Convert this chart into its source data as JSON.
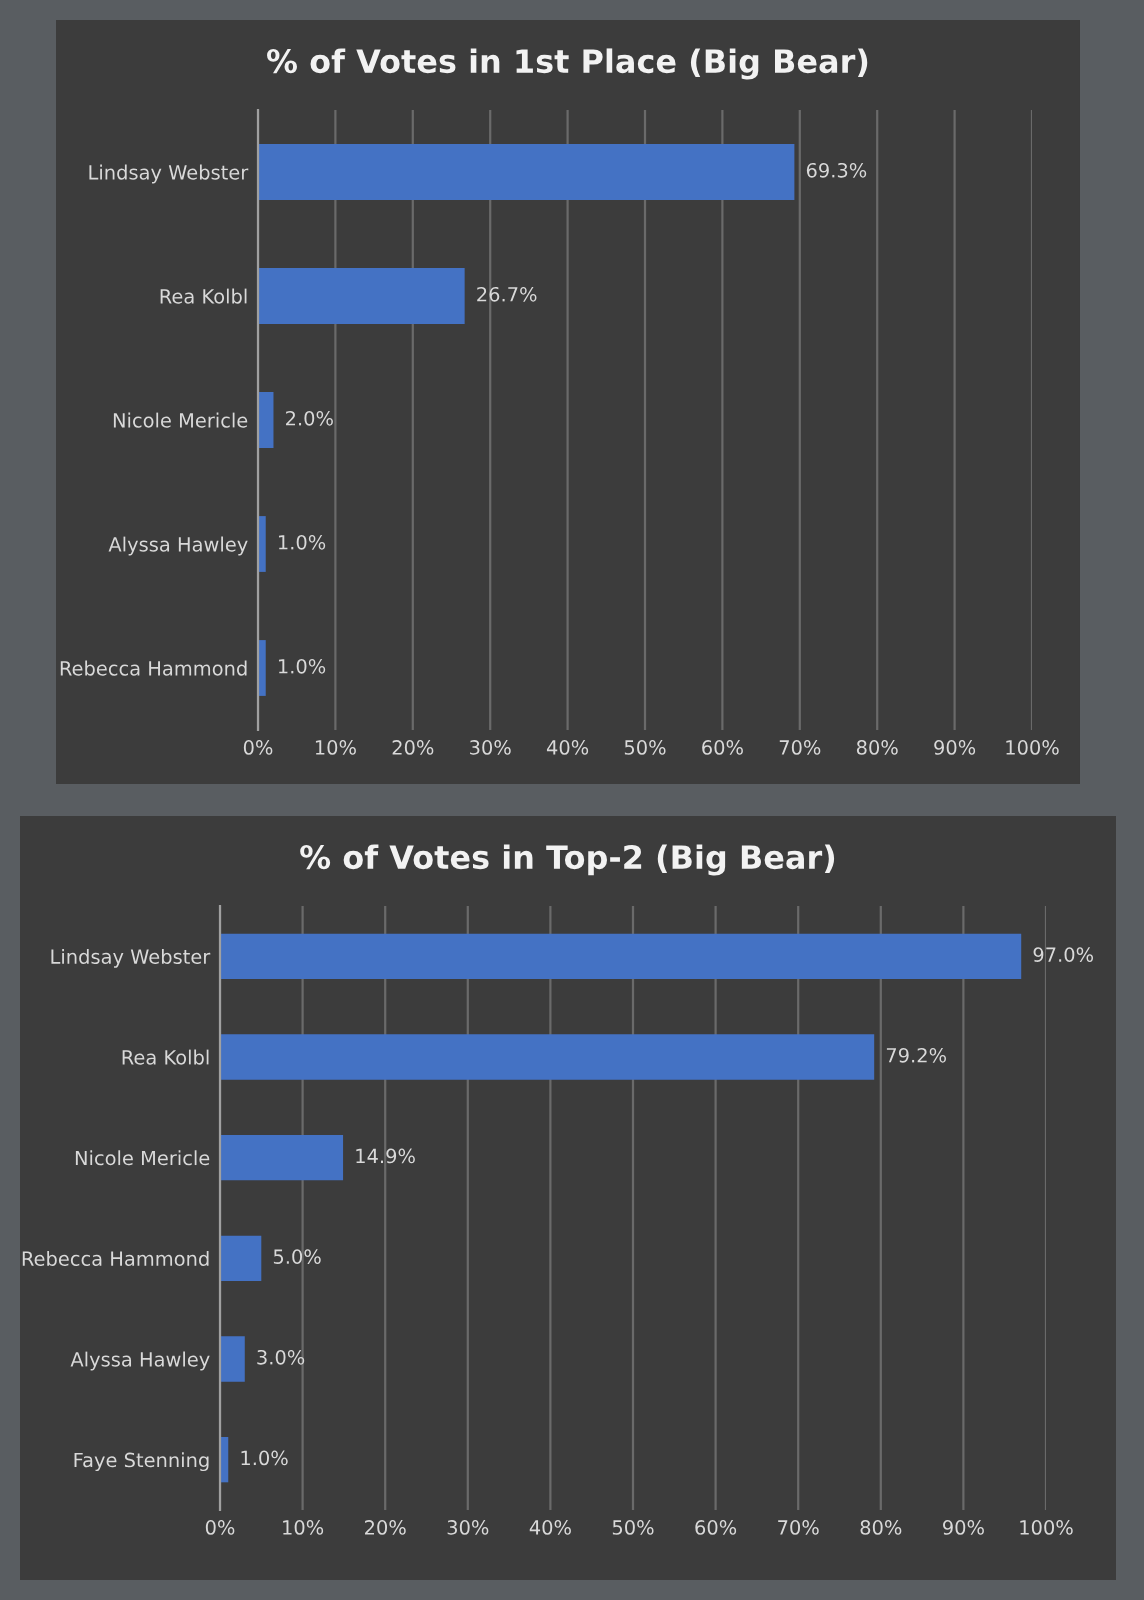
{
  "chart_data": [
    {
      "type": "bar",
      "orientation": "horizontal",
      "title": "% of Votes in 1st Place (Big Bear)",
      "categories": [
        "Lindsay Webster",
        "Rea Kolbl",
        "Nicole Mericle",
        "Alyssa Hawley",
        "Rebecca Hammond"
      ],
      "values": [
        69.3,
        26.7,
        2.0,
        1.0,
        1.0
      ],
      "value_labels": [
        "69.3%",
        "26.7%",
        "2.0%",
        "1.0%",
        "1.0%"
      ],
      "color": "#4472c4",
      "xlim": [
        0,
        100
      ],
      "xticks": [
        {
          "value": 0,
          "label": "0%"
        },
        {
          "value": 10,
          "label": "10%"
        },
        {
          "value": 20,
          "label": "20%"
        },
        {
          "value": 30,
          "label": "30%"
        },
        {
          "value": 40,
          "label": "40%"
        },
        {
          "value": 50,
          "label": "50%"
        },
        {
          "value": 60,
          "label": "60%"
        },
        {
          "value": 70,
          "label": "70%"
        },
        {
          "value": 80,
          "label": "80%"
        },
        {
          "value": 90,
          "label": "90%"
        },
        {
          "value": 100,
          "label": "100%"
        }
      ],
      "grid": "x"
    },
    {
      "type": "bar",
      "orientation": "horizontal",
      "title": "% of Votes in Top-2 (Big Bear)",
      "categories": [
        "Lindsay Webster",
        "Rea Kolbl",
        "Nicole Mericle",
        "Rebecca Hammond",
        "Alyssa Hawley",
        "Faye Stenning"
      ],
      "values": [
        97.0,
        79.2,
        14.9,
        5.0,
        3.0,
        1.0
      ],
      "value_labels": [
        "97.0%",
        "79.2%",
        "14.9%",
        "5.0%",
        "3.0%",
        "1.0%"
      ],
      "color": "#4472c4",
      "xlim": [
        0,
        100
      ],
      "xticks": [
        {
          "value": 0,
          "label": "0%"
        },
        {
          "value": 10,
          "label": "10%"
        },
        {
          "value": 20,
          "label": "20%"
        },
        {
          "value": 30,
          "label": "30%"
        },
        {
          "value": 40,
          "label": "40%"
        },
        {
          "value": 50,
          "label": "50%"
        },
        {
          "value": 60,
          "label": "60%"
        },
        {
          "value": 70,
          "label": "70%"
        },
        {
          "value": 80,
          "label": "80%"
        },
        {
          "value": 90,
          "label": "90%"
        },
        {
          "value": 100,
          "label": "100%"
        }
      ],
      "grid": "x"
    }
  ]
}
